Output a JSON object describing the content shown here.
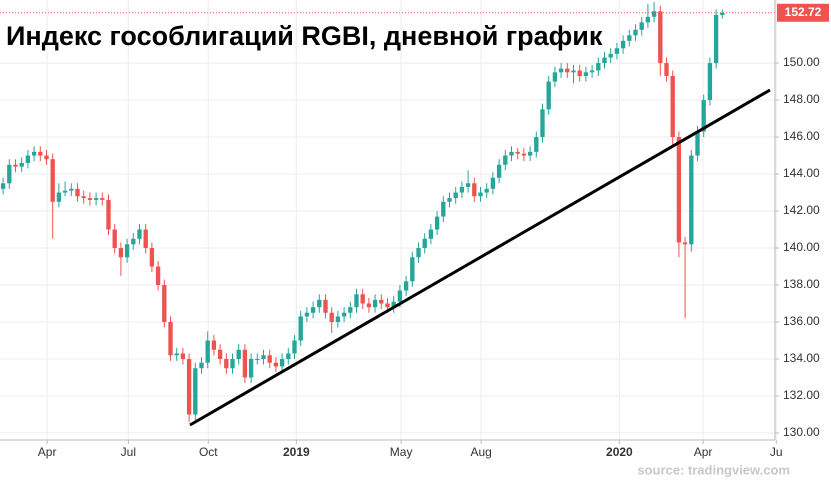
{
  "chart_data": {
    "type": "candlestick",
    "title": "Индекс гособлигаций RGBI, дневной график",
    "source": "source: tradingview.com",
    "up_color": "#26a69a",
    "down_color": "#ef5350",
    "grid": true,
    "xlim": [
      -0.5,
      124.5
    ],
    "xticks": [
      {
        "value": 7.1,
        "label": "Apr"
      },
      {
        "value": 20.2,
        "label": "Jul"
      },
      {
        "value": 33.1,
        "label": "Oct"
      },
      {
        "value": 47.3,
        "label": "2019"
      },
      {
        "value": 64.2,
        "label": "May"
      },
      {
        "value": 77.1,
        "label": "Aug"
      },
      {
        "value": 99.4,
        "label": "2020"
      },
      {
        "value": 112.9,
        "label": "Apr"
      },
      {
        "value": 124.7,
        "label": "Ju"
      }
    ],
    "ylim": [
      129.62,
      153.41
    ],
    "yticks": [
      {
        "value": 130,
        "label": "130.00"
      },
      {
        "value": 132,
        "label": "132.00"
      },
      {
        "value": 134,
        "label": "134.00"
      },
      {
        "value": 136,
        "label": "136.00"
      },
      {
        "value": 138,
        "label": "138.00"
      },
      {
        "value": 140,
        "label": "140.00"
      },
      {
        "value": 142,
        "label": "142.00"
      },
      {
        "value": 144,
        "label": "144.00"
      },
      {
        "value": 146,
        "label": "146.00"
      },
      {
        "value": 148,
        "label": "148.00"
      },
      {
        "value": 150,
        "label": "150.00"
      }
    ],
    "open": [
      143.2,
      143.5,
      144.5,
      144.4,
      144.6,
      145,
      145.2,
      145,
      144.8,
      142.5,
      143,
      143.1,
      143.2,
      142.8,
      142.7,
      142.6,
      142.7,
      142.6,
      141,
      140,
      139.5,
      140.2,
      140.5,
      141,
      140,
      139,
      138,
      136,
      134.2,
      134.3,
      134,
      131,
      133.5,
      133.8,
      135,
      134.5,
      134,
      133.5,
      134,
      134.5,
      133,
      134,
      134,
      134.2,
      133.8,
      133.6,
      134,
      134.3,
      135,
      136.3,
      136.5,
      136.8,
      137.2,
      136.5,
      136,
      136.3,
      136.5,
      136.8,
      137.5,
      137,
      136.8,
      137.2,
      137,
      136.8,
      137.1,
      137.7,
      138.2,
      139.5,
      140,
      140.5,
      141,
      141.7,
      142.5,
      142.7,
      143,
      143.3,
      143.5,
      142.8,
      143,
      143.2,
      143.8,
      144.5,
      145,
      145.2,
      145.1,
      145,
      145.2,
      146,
      147.5,
      149,
      149.5,
      149.7,
      149.5,
      149.6,
      149.3,
      149.5,
      149.6,
      150,
      150.3,
      150.5,
      150.8,
      151.2,
      151.5,
      151.8,
      152.2,
      152.5,
      152.8,
      150,
      149.3,
      146,
      140.3,
      140.2,
      145,
      146.3,
      148,
      150,
      152.6
    ],
    "high": [
      143.8,
      144.8,
      144.8,
      144.9,
      145.3,
      145.5,
      145.5,
      145.3,
      145.1,
      143.5,
      143.6,
      143.5,
      143.5,
      143.1,
      143,
      143,
      143,
      142.9,
      141.3,
      140.3,
      140.5,
      140.8,
      141.3,
      141.3,
      140.3,
      139.3,
      138.3,
      136.3,
      134.6,
      134.6,
      134.3,
      133.8,
      134.1,
      135.5,
      135.3,
      134.8,
      134.3,
      134.3,
      134.8,
      134.8,
      134.3,
      134.3,
      134.5,
      134.5,
      134.1,
      134.3,
      134.6,
      135.3,
      136.6,
      136.8,
      137.1,
      137.5,
      137.5,
      136.8,
      136.6,
      136.8,
      137.1,
      137.8,
      137.8,
      137.3,
      137.5,
      137.5,
      137.3,
      137.4,
      138,
      138.5,
      139.8,
      140.3,
      140.8,
      141.3,
      142,
      142.8,
      143,
      143.3,
      143.6,
      144.2,
      143.8,
      143.3,
      143.5,
      144.1,
      144.8,
      145.3,
      145.5,
      145.4,
      145.4,
      145.5,
      146.3,
      147.8,
      149.3,
      149.8,
      150,
      150,
      149.9,
      149.9,
      149.8,
      149.9,
      150.3,
      150.6,
      150.8,
      151.1,
      151.5,
      151.8,
      152.1,
      152.5,
      153.2,
      153.3,
      153.1,
      150.3,
      149.6,
      146.3,
      140.6,
      145.3,
      146.6,
      148.3,
      150.3,
      152.9,
      152.9
    ],
    "low": [
      142.9,
      143.2,
      144.1,
      144.1,
      144.3,
      144.7,
      144.7,
      144.5,
      140.5,
      142.2,
      142.8,
      142.8,
      142.5,
      142.4,
      142.3,
      142.3,
      142.3,
      140.7,
      139.7,
      138.5,
      139.2,
      139.9,
      140.2,
      139.7,
      138.7,
      137.7,
      135.7,
      133.9,
      133.9,
      133.7,
      130.6,
      130.7,
      133.2,
      133.5,
      134.2,
      133.7,
      133.2,
      133.2,
      133.7,
      132.7,
      132.7,
      133.7,
      133.7,
      133.5,
      133.3,
      133.3,
      133.7,
      134,
      134.7,
      136,
      136.2,
      136.5,
      136.2,
      135.4,
      135.7,
      136,
      136.2,
      136.5,
      136.7,
      136.5,
      136.5,
      136.7,
      136.5,
      136.5,
      136.8,
      137.4,
      137.9,
      139.2,
      139.7,
      140.2,
      140.7,
      141.4,
      142.2,
      142.4,
      142.7,
      143,
      142.5,
      142.5,
      142.7,
      142.9,
      143.5,
      144.2,
      144.7,
      144.8,
      144.7,
      144.7,
      144.9,
      145.7,
      147.2,
      148.7,
      149.2,
      149.2,
      148.9,
      149,
      149,
      149.2,
      149.3,
      149.7,
      150,
      150.2,
      150.5,
      150.9,
      151.2,
      151.5,
      151.9,
      152.2,
      149.3,
      149,
      145.5,
      139.5,
      136.2,
      139.8,
      144.7,
      146,
      147.7,
      149.7,
      152.4
    ],
    "close": [
      143.5,
      144.5,
      144.4,
      144.6,
      145,
      145.2,
      145,
      144.8,
      142.5,
      143,
      143.1,
      143.2,
      142.8,
      142.7,
      142.6,
      142.7,
      142.6,
      141,
      140,
      139.5,
      140.2,
      140.5,
      141,
      140,
      139,
      138,
      136,
      134.2,
      134.3,
      134,
      131,
      133.5,
      133.8,
      135,
      134.5,
      134,
      133.5,
      134,
      134.5,
      133,
      134,
      134,
      134.2,
      133.8,
      133.6,
      134,
      134.3,
      135,
      136.3,
      136.5,
      136.8,
      137.2,
      136.5,
      136,
      136.3,
      136.5,
      136.8,
      137.5,
      137,
      136.8,
      137.2,
      137,
      136.8,
      137.1,
      137.7,
      138.2,
      139.5,
      140,
      140.5,
      141,
      141.7,
      142.5,
      142.7,
      143,
      143.3,
      143.5,
      142.8,
      143,
      143.2,
      143.8,
      144.5,
      145,
      145.2,
      145.1,
      145,
      145.2,
      146,
      147.5,
      149,
      149.5,
      149.7,
      149.5,
      149.6,
      149.3,
      149.5,
      149.6,
      150,
      150.3,
      150.5,
      150.8,
      151.2,
      151.5,
      151.8,
      152.2,
      152.5,
      152.8,
      150,
      149.3,
      146,
      140.3,
      140.2,
      145,
      146.3,
      148,
      150,
      152.6,
      152.72
    ]
  }
}
